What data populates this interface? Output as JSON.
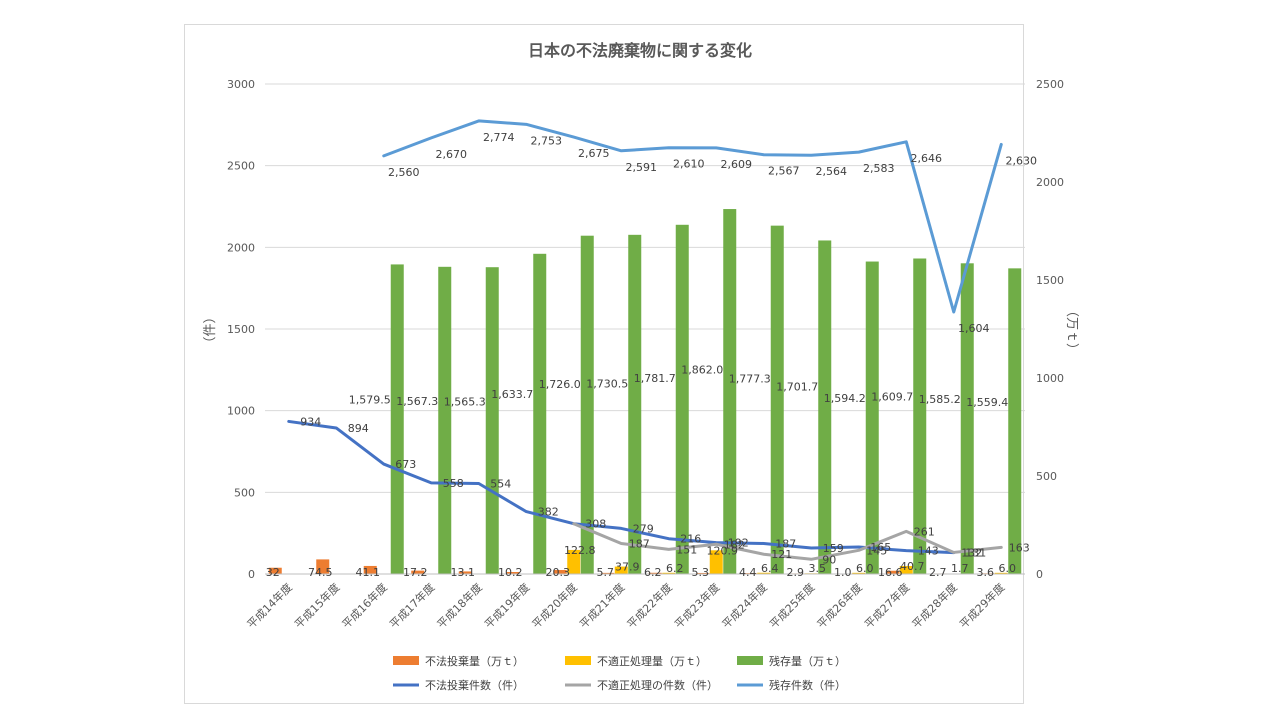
{
  "chart_data": {
    "type": "bar",
    "title": "日本の不法廃棄物に関する変化",
    "y_left_label": "（件）",
    "y_right_label": "（万ｔ）",
    "y_left_lim": [
      0,
      3000
    ],
    "y_left_ticks": [
      "0",
      "500",
      "1000",
      "1500",
      "2000",
      "2500",
      "3000"
    ],
    "y_right_lim": [
      0,
      2500
    ],
    "y_right_ticks": [
      "0",
      "500",
      "1000",
      "1500",
      "2000",
      "2500"
    ],
    "categories": [
      "平成14年度",
      "平成15年度",
      "平成16年度",
      "平成17年度",
      "平成18年度",
      "平成19年度",
      "平成20年度",
      "平成21年度",
      "平成22年度",
      "平成23年度",
      "平成24年度",
      "平成25年度",
      "平成26年度",
      "平成27年度",
      "平成28年度",
      "平成29年度"
    ],
    "bar_series": [
      {
        "name": "不法投棄量（万ｔ）",
        "color": "#ed7d31",
        "values": [
          32,
          74.5,
          41.1,
          17.2,
          13.1,
          10.2,
          20.3,
          5.7,
          6.2,
          5.3,
          4.4,
          2.9,
          1.0,
          16.6,
          2.7,
          3.6
        ],
        "labels": [
          "32",
          "74.5",
          "41.1",
          "17.2",
          "13.1",
          "10.2",
          "20.3",
          "5.7",
          "6.2",
          "5.3",
          "4.4",
          "2.9",
          "1.0",
          "16.6",
          "2.7",
          "3.6"
        ]
      },
      {
        "name": "不適正処理量（万ｔ）",
        "color": "#ffc000",
        "values": [
          null,
          null,
          null,
          null,
          null,
          null,
          122.8,
          37.9,
          6.2,
          120.9,
          6.4,
          3.5,
          6.0,
          40.7,
          1.7,
          6.0
        ],
        "labels": [
          "",
          "",
          "",
          "",
          "",
          "",
          "122.8",
          "37.9",
          "6.2",
          "120.9",
          "6.4",
          "3.5",
          "6.0",
          "40.7",
          "1.7",
          "6.0"
        ]
      },
      {
        "name": "残存量（万ｔ）",
        "color": "#70ad47",
        "values": [
          null,
          null,
          1579.5,
          1567.3,
          1565.3,
          1633.7,
          1726.0,
          1730.5,
          1781.7,
          1862.0,
          1777.3,
          1701.7,
          1594.2,
          1609.7,
          1585.2,
          1559.4
        ],
        "labels": [
          "",
          "",
          "1,579.5",
          "1,567.3",
          "1,565.3",
          "1,633.7",
          "1,726.0",
          "1,730.5",
          "1,781.7",
          "1,862.0",
          "1,777.3",
          "1,701.7",
          "1,594.2",
          "1,609.7",
          "1,585.2",
          "1,559.4"
        ]
      }
    ],
    "line_series": [
      {
        "name": "不法投棄件数（件）",
        "color": "#4472c4",
        "values": [
          934,
          894,
          673,
          558,
          554,
          382,
          308,
          279,
          216,
          192,
          187,
          159,
          165,
          143,
          131,
          null
        ],
        "labels": [
          "934",
          "894",
          "673",
          "558",
          "554",
          "382",
          "308",
          "279",
          "216",
          "192",
          "187",
          "159",
          "165",
          "143",
          "131",
          ""
        ]
      },
      {
        "name": "不適正処理の件数（件）",
        "color": "#a5a5a5",
        "values": [
          null,
          null,
          null,
          null,
          null,
          null,
          308,
          187,
          151,
          182,
          121,
          90,
          145,
          261,
          132,
          163
        ],
        "labels": [
          "",
          "",
          "",
          "",
          "",
          "",
          "",
          "187",
          "151",
          "182",
          "121",
          "90",
          "145",
          "261",
          "132",
          "163"
        ]
      },
      {
        "name": "残存件数（件）",
        "color": "#5b9bd5",
        "values": [
          null,
          null,
          2560,
          2670,
          2774,
          2753,
          2675,
          2591,
          2610,
          2609,
          2567,
          2564,
          2583,
          2646,
          1604,
          2630
        ],
        "labels": [
          "",
          "",
          "2,560",
          "2,670",
          "2,774",
          "2,753",
          "2,675",
          "2,591",
          "2,610",
          "2,609",
          "2,567",
          "2,564",
          "2,583",
          "2,646",
          "1,604",
          "2,630"
        ]
      }
    ],
    "legend_position": "bottom",
    "gridlines": true
  }
}
